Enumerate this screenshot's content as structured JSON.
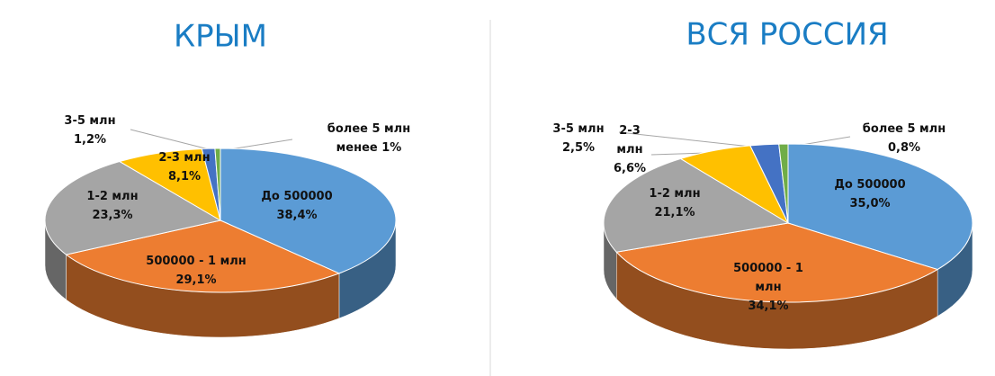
{
  "chart_data": [
    {
      "type": "pie",
      "title": "КРЫМ",
      "categories": [
        "До 500000",
        "500000 - 1 млн",
        "1-2 млн",
        "2-3 млн",
        "3-5 млн",
        "более 5 млн"
      ],
      "values": [
        38.4,
        29.1,
        23.3,
        8.1,
        1.2,
        0.5
      ],
      "value_labels": [
        "38,4%",
        "29,1%",
        "23,3%",
        "8,1%",
        "1,2%",
        "менее 1%"
      ],
      "colors": [
        "#5b9bd5",
        "#ed7d31",
        "#a5a5a5",
        "#ffc000",
        "#4472c4",
        "#70ad47"
      ]
    },
    {
      "type": "pie",
      "title": "ВСЯ РОССИЯ",
      "categories": [
        "До 500000",
        "500000 - 1 млн",
        "1-2 млн",
        "2-3 млн",
        "3-5 млн",
        "более 5 млн"
      ],
      "values": [
        35.0,
        34.1,
        21.1,
        6.6,
        2.5,
        0.8
      ],
      "value_labels": [
        "35,0%",
        "34,1%",
        "21,1%",
        "6,6%",
        "2,5%",
        "0,8%"
      ],
      "colors": [
        "#5b9bd5",
        "#ed7d31",
        "#a5a5a5",
        "#ffc000",
        "#4472c4",
        "#70ad47"
      ]
    }
  ]
}
